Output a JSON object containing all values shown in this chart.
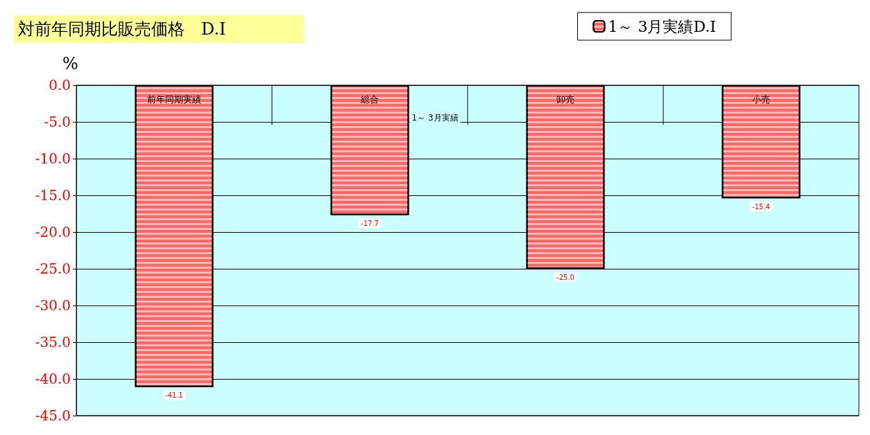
{
  "chart_data": {
    "type": "bar",
    "title": "対前年同期比販売価格　D.I",
    "ylabel": "%",
    "categories": [
      "前年同期実績",
      "総合",
      "卸売",
      "小売"
    ],
    "series": [
      {
        "name": "1～ 3月実績D.I",
        "color": "#ff6666",
        "values": [
          -41.1,
          -17.7,
          -25.0,
          -15.4
        ],
        "value_labels": [
          "-41.1",
          "-17.7",
          "-25.0",
          "-15.4"
        ]
      }
    ],
    "ylim": [
      -45,
      0
    ],
    "yticks": [
      {
        "value": 0,
        "label": "0.0"
      },
      {
        "value": -5,
        "label": "-5.0"
      },
      {
        "value": -10,
        "label": "-10.0"
      },
      {
        "value": -15,
        "label": "-15.0"
      },
      {
        "value": -20,
        "label": "-20.0"
      },
      {
        "value": -25,
        "label": "-25.0"
      },
      {
        "value": -30,
        "label": "-30.0"
      },
      {
        "value": -35,
        "label": "-35.0"
      },
      {
        "value": -40,
        "label": "-40.0"
      },
      {
        "value": -45,
        "label": "-45.0"
      }
    ],
    "annotations": [
      "1～ 3月実績"
    ],
    "grid": "y",
    "legend": "top right"
  }
}
